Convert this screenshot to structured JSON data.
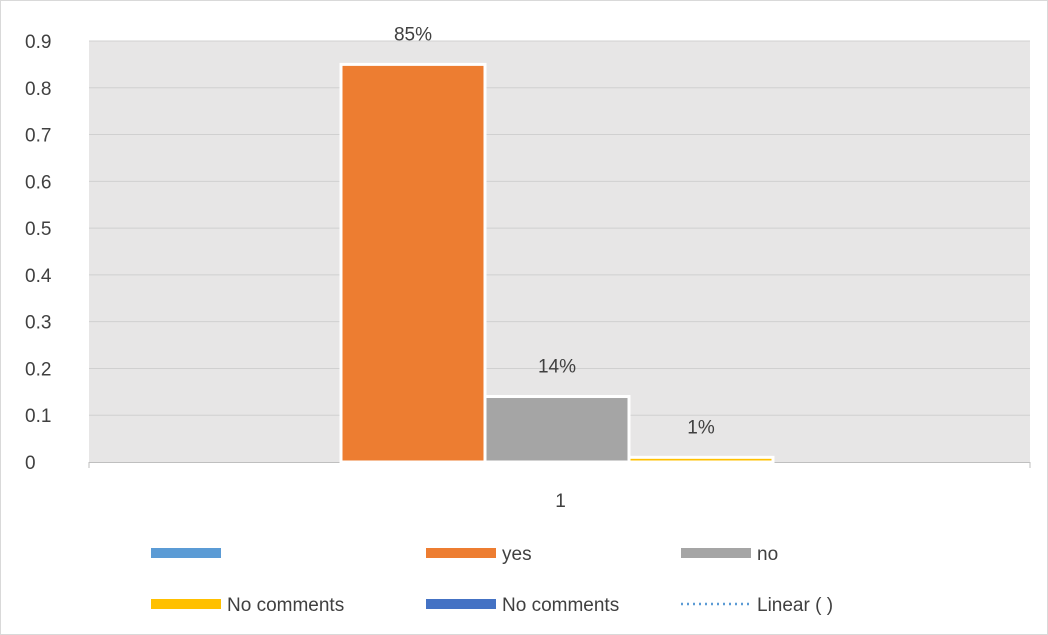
{
  "chart_data": {
    "type": "bar",
    "categories": [
      "1"
    ],
    "series": [
      {
        "name": "",
        "values": [
          0
        ],
        "color": "#5b9bd5"
      },
      {
        "name": "yes",
        "values": [
          0.85
        ],
        "color": "#ed7d31",
        "data_label": "85%"
      },
      {
        "name": "no",
        "values": [
          0.14
        ],
        "color": "#a5a5a5",
        "data_label": "14%"
      },
      {
        "name": "No comments",
        "values": [
          0.01
        ],
        "color": "#ffc000",
        "data_label": "1%"
      },
      {
        "name": "No comments",
        "values": [
          0
        ],
        "color": "#4472c4"
      }
    ],
    "trendline": {
      "name": "Linear ( )",
      "color": "#5b9bd5",
      "style": "dotted"
    },
    "yticks": [
      "0",
      "0.1",
      "0.2",
      "0.3",
      "0.4",
      "0.5",
      "0.6",
      "0.7",
      "0.8",
      "0.9"
    ],
    "ylim": [
      0,
      0.9
    ],
    "grid": true,
    "plot_background": "#e7e6e6",
    "legend_position": "bottom",
    "title": "",
    "xlabel": "",
    "ylabel": ""
  }
}
